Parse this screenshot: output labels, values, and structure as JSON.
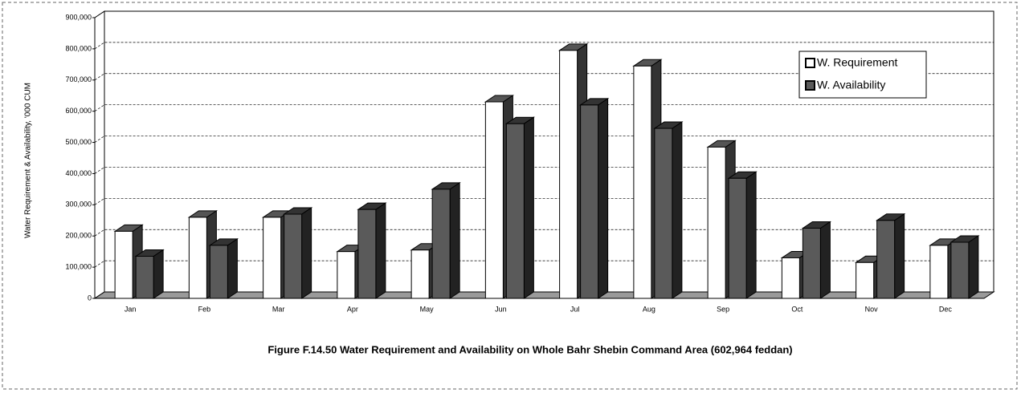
{
  "chart_data": {
    "type": "bar3d",
    "title": "Figure F.14.50 Water Requirement and Availability on Whole Bahr Shebin Command Area (602,964 feddan)",
    "y_label": "Water Requirement & Availability, '000 CUM",
    "categories": [
      "Jan",
      "Feb",
      "Mar",
      "Apr",
      "May",
      "Jun",
      "Jul",
      "Aug",
      "Sep",
      "Oct",
      "Nov",
      "Dec"
    ],
    "series": [
      {
        "name": "W. Requirement",
        "color": "#ffffff",
        "values": [
          215000,
          260000,
          260000,
          150000,
          155000,
          630000,
          795000,
          745000,
          485000,
          130000,
          115000,
          170000
        ]
      },
      {
        "name": "W. Availability",
        "color": "#5a5a5a",
        "values": [
          135000,
          170000,
          270000,
          285000,
          350000,
          560000,
          620000,
          545000,
          385000,
          225000,
          250000,
          180000
        ]
      }
    ],
    "ylim": [
      0,
      900000
    ],
    "yticks": [
      0,
      {
        "value": 100000,
        "label": "100,000"
      },
      {
        "value": 200000,
        "label": "200,000"
      },
      {
        "value": 300000,
        "label": "300,000"
      },
      {
        "value": 400000,
        "label": "400,000"
      },
      {
        "value": 500000,
        "label": "500,000"
      },
      {
        "value": 600000,
        "label": "600,000"
      },
      {
        "value": 700000,
        "label": "700,000"
      },
      {
        "value": 800000,
        "label": "800,000"
      },
      {
        "value": 900000,
        "label": "900,000"
      }
    ],
    "grid": true,
    "legend": "upper right"
  }
}
